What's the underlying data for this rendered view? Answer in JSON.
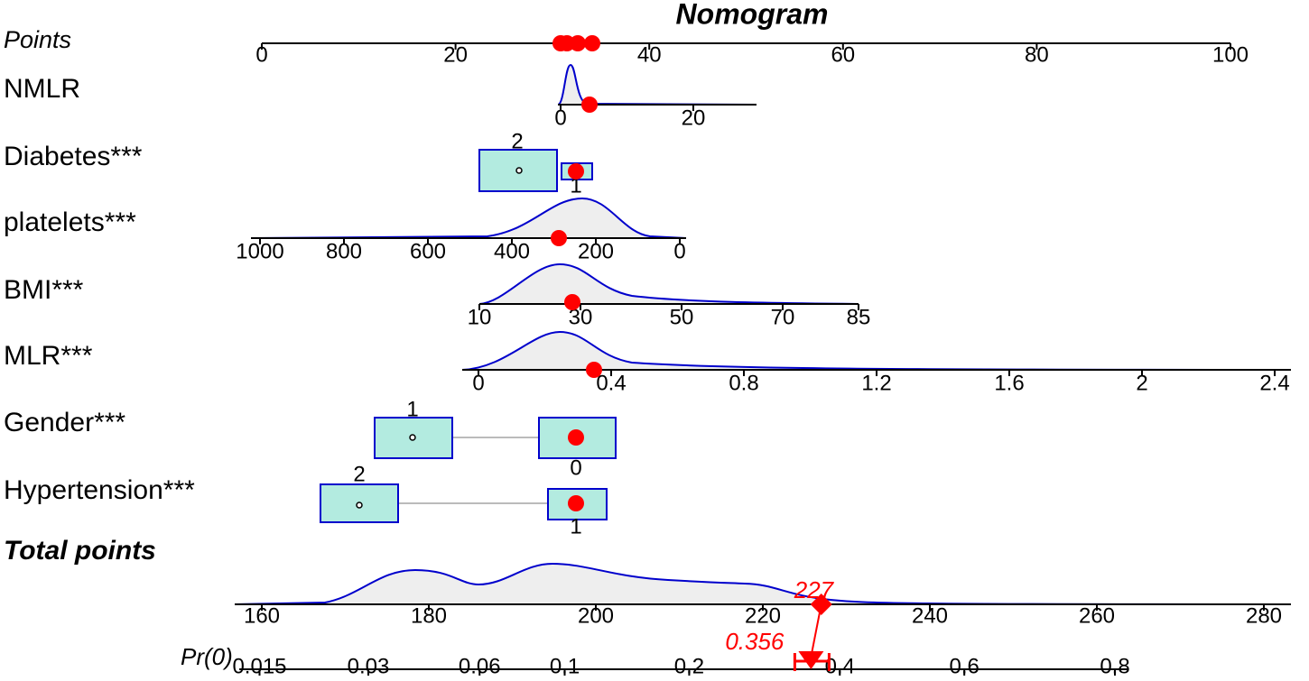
{
  "chart_data": {
    "type": "nomogram",
    "title": "Nomogram",
    "points_axis": {
      "label": "Points",
      "ticks": [
        0,
        20,
        40,
        60,
        80,
        100
      ]
    },
    "rows": [
      {
        "label": "NMLR",
        "kind": "continuous",
        "ticks": [
          0,
          20
        ]
      },
      {
        "label": "Diabetes***",
        "kind": "categorical",
        "levels": [
          "2",
          "1"
        ]
      },
      {
        "label": "platelets***",
        "kind": "continuous",
        "ticks": [
          1000,
          800,
          600,
          400,
          200,
          0
        ]
      },
      {
        "label": "BMI***",
        "kind": "continuous",
        "ticks": [
          10,
          30,
          50,
          70,
          85
        ]
      },
      {
        "label": "MLR***",
        "kind": "continuous",
        "ticks": [
          0,
          0.4,
          0.8,
          1.2,
          1.6,
          2,
          2.4
        ]
      },
      {
        "label": "Gender***",
        "kind": "categorical",
        "levels": [
          "1",
          "0"
        ]
      },
      {
        "label": "Hypertension***",
        "kind": "categorical",
        "levels": [
          "2",
          "1"
        ]
      }
    ],
    "total_axis": {
      "label": "Total points",
      "ticks": [
        160,
        180,
        200,
        220,
        240,
        260,
        280
      ],
      "value": 227
    },
    "probability_axis": {
      "label": "Pr(0)",
      "scale": "logit",
      "ticks": [
        0.015,
        0.03,
        0.06,
        0.1,
        0.2,
        0.4,
        0.6,
        0.8
      ],
      "value": 0.356
    },
    "marker_color": "#ff0000",
    "density_color": "#0000cc"
  }
}
